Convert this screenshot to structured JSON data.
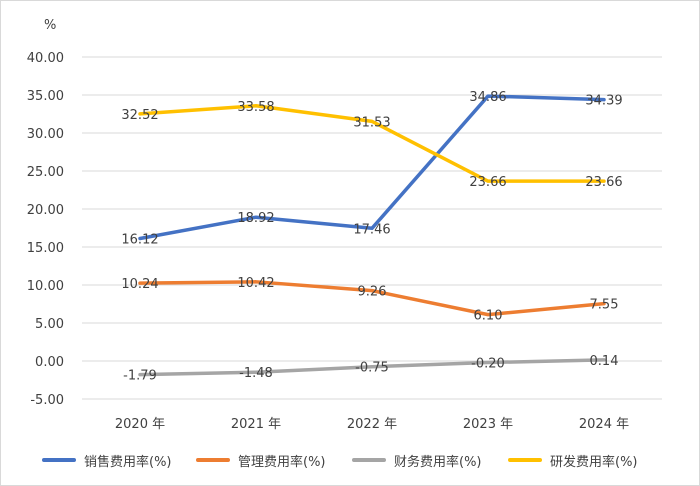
{
  "chart_data": {
    "type": "line",
    "unit_label": "%",
    "categories": [
      "2020 年",
      "2021 年",
      "2022 年",
      "2023 年",
      "2024 年"
    ],
    "ylim": [
      -5,
      40
    ],
    "y_ticks": [
      "40.00",
      "35.00",
      "30.00",
      "25.00",
      "20.00",
      "15.00",
      "10.00",
      "5.00",
      "0.00",
      "-5.00"
    ],
    "grid": true,
    "legend_position": "bottom",
    "series": [
      {
        "name": "销售费用率(%)",
        "color": "#4472C4",
        "values": [
          16.12,
          18.92,
          17.46,
          34.86,
          34.39
        ],
        "labels": [
          "16.12",
          "18.92",
          "17.46",
          "34.86",
          "34.39"
        ]
      },
      {
        "name": "管理费用率(%)",
        "color": "#ED7D31",
        "values": [
          10.24,
          10.42,
          9.26,
          6.1,
          7.55
        ],
        "labels": [
          "10.24",
          "10.42",
          "9.26",
          "6.10",
          "7.55"
        ]
      },
      {
        "name": "财务费用率(%)",
        "color": "#A5A5A5",
        "values": [
          -1.79,
          -1.48,
          -0.75,
          -0.2,
          0.14
        ],
        "labels": [
          "-1.79",
          "-1.48",
          "-0.75",
          "-0.20",
          "0.14"
        ]
      },
      {
        "name": "研发费用率(%)",
        "color": "#FFC000",
        "values": [
          32.52,
          33.58,
          31.53,
          23.66,
          23.66
        ],
        "labels": [
          "32.52",
          "33.58",
          "31.53",
          "23.66",
          "23.66"
        ]
      }
    ]
  }
}
